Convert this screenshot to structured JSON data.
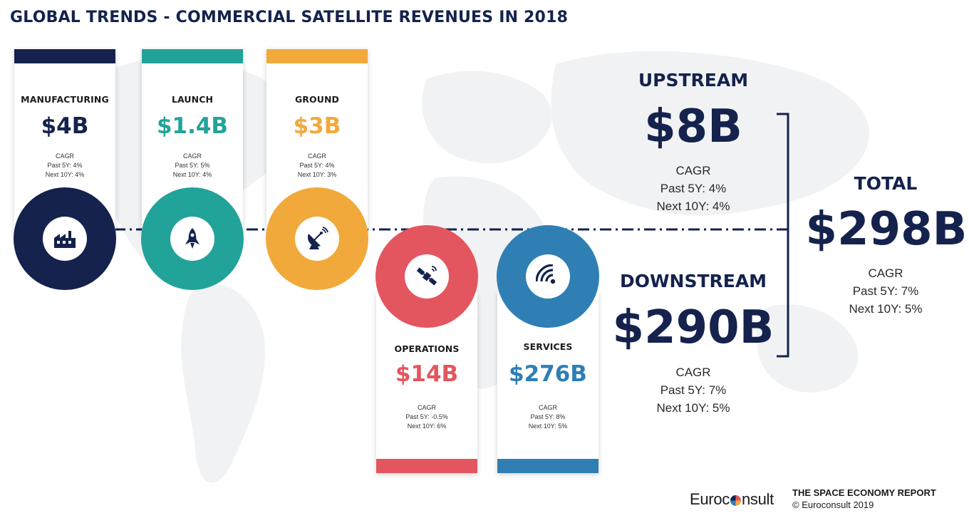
{
  "title": "GLOBAL TRENDS - COMMERCIAL SATELLITE REVENUES IN 2018",
  "segments": {
    "manufacturing": {
      "label": "MANUFACTURING",
      "value": "$4B",
      "cagr": "CAGR",
      "past": "Past 5Y: 4%",
      "next": "Next 10Y: 4%",
      "color": "#14224d",
      "icon": "factory-icon"
    },
    "launch": {
      "label": "LAUNCH",
      "value": "$1.4B",
      "cagr": "CAGR",
      "past": "Past 5Y: 5%",
      "next": "Next 10Y: 4%",
      "color": "#22a39a",
      "icon": "rocket-icon"
    },
    "ground": {
      "label": "GROUND",
      "value": "$3B",
      "cagr": "CAGR",
      "past": "Past 5Y: 4%",
      "next": "Next 10Y: 3%",
      "color": "#f2a93b",
      "icon": "satellite-dish-icon"
    },
    "operations": {
      "label": "OPERATIONS",
      "value": "$14B",
      "cagr": "CAGR",
      "past": "Past 5Y: -0.5%",
      "next": "Next 10Y: 6%",
      "color": "#e4565f",
      "icon": "satellite-icon"
    },
    "services": {
      "label": "SERVICES",
      "value": "$276B",
      "cagr": "CAGR",
      "past": "Past 5Y: 8%",
      "next": "Next 10Y: 5%",
      "color": "#2f7fb5",
      "icon": "signal-icon"
    }
  },
  "upstream": {
    "label": "UPSTREAM",
    "value": "$8B",
    "cagr": "CAGR",
    "past": "Past 5Y: 4%",
    "next": "Next 10Y: 4%"
  },
  "downstream": {
    "label": "DOWNSTREAM",
    "value": "$290B",
    "cagr": "CAGR",
    "past": "Past 5Y: 7%",
    "next": "Next 10Y: 5%"
  },
  "total": {
    "label": "TOTAL",
    "value": "$298B",
    "cagr": "CAGR",
    "past": "Past 5Y: 7%",
    "next": "Next 10Y: 5%"
  },
  "footer": {
    "logo_left": "Euroc",
    "logo_right": "nsult",
    "report": "THE SPACE ECONOMY REPORT",
    "copyright": "© Euroconsult 2019"
  },
  "colors": {
    "navy": "#14224d",
    "teal": "#22a39a",
    "orange": "#f2a93b",
    "red": "#e4565f",
    "blue": "#2f7fb5"
  }
}
